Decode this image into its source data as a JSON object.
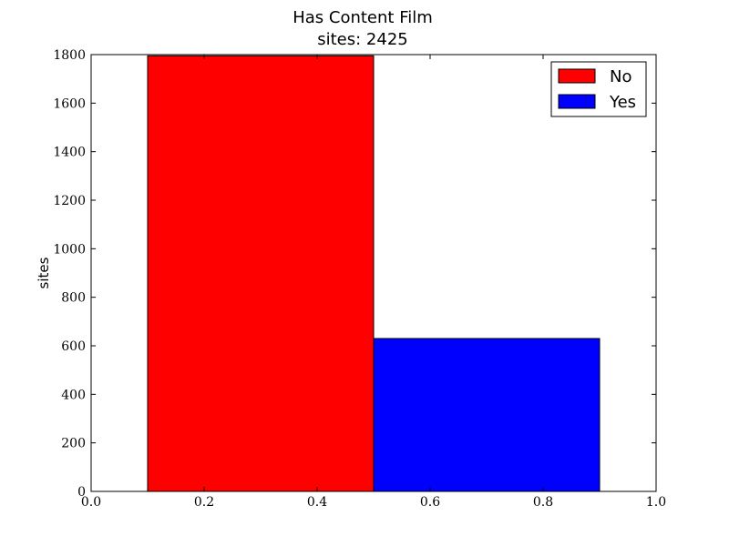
{
  "chart_data": {
    "type": "bar",
    "title": "Has Content Film",
    "subtitle": "sites: 2425",
    "xlabel": "",
    "ylabel": "sites",
    "xlim": [
      0.0,
      1.0
    ],
    "ylim": [
      0,
      1800
    ],
    "xticks": [
      "0.0",
      "0.2",
      "0.4",
      "0.6",
      "0.8",
      "1.0"
    ],
    "yticks": [
      "0",
      "200",
      "400",
      "600",
      "800",
      "1000",
      "1200",
      "1400",
      "1600",
      "1800"
    ],
    "legend_position": "top-right",
    "grid": false,
    "series": [
      {
        "name": "No",
        "x_start": 0.1,
        "x_end": 0.5,
        "value": 1795,
        "color": "#ff0000"
      },
      {
        "name": "Yes",
        "x_start": 0.5,
        "x_end": 0.9,
        "value": 630,
        "color": "#0000ff"
      }
    ]
  }
}
